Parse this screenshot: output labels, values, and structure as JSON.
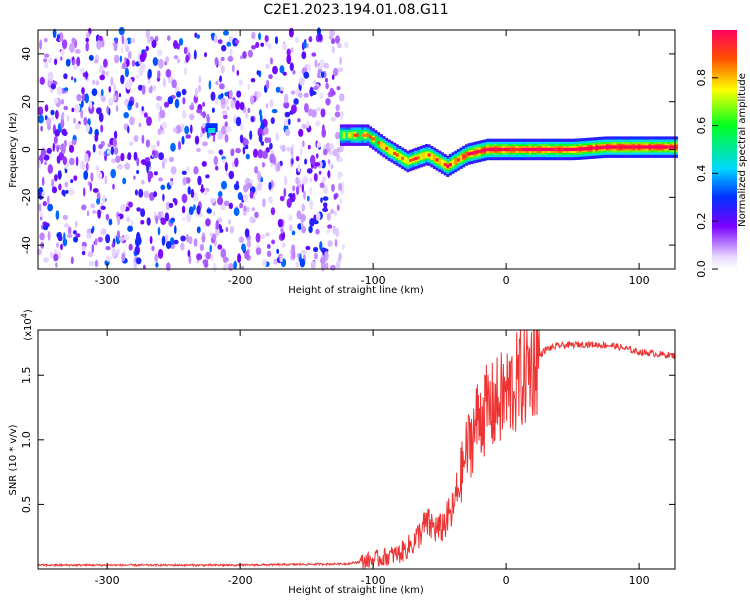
{
  "title": "C2E1.2023.194.01.08.G11",
  "chart_data": [
    {
      "type": "heatmap",
      "xlabel": "Height of straight line (km)",
      "ylabel": "Frequency (Hz)",
      "xlim": [
        -352,
        127
      ],
      "ylim": [
        -50,
        50
      ],
      "xticks": [
        -300,
        -200,
        -100,
        0,
        100
      ],
      "yticks": [
        -40,
        -20,
        0,
        20,
        40
      ],
      "colorbar": {
        "label": "Normalized spectral amplitude",
        "range": [
          0,
          1
        ],
        "ticks": [
          0.0,
          0.2,
          0.4,
          0.6,
          0.8
        ],
        "tick_labels": [
          "0.0",
          "0.2",
          "0.4",
          "0.6",
          "0.8"
        ]
      },
      "noise_region": {
        "x": [
          -352,
          -120
        ],
        "typical_amplitude": 0.25
      },
      "tone_track": [
        {
          "x": -125,
          "freq": 6,
          "amp": 0.55
        },
        {
          "x": -105,
          "freq": 6,
          "amp": 0.7
        },
        {
          "x": -90,
          "freq": 0,
          "amp": 0.75
        },
        {
          "x": -75,
          "freq": -5,
          "amp": 0.75
        },
        {
          "x": -60,
          "freq": -2,
          "amp": 0.8
        },
        {
          "x": -45,
          "freq": -7,
          "amp": 0.85
        },
        {
          "x": -30,
          "freq": -2,
          "amp": 0.9
        },
        {
          "x": -15,
          "freq": 0,
          "amp": 0.95
        },
        {
          "x": 0,
          "freq": 0,
          "amp": 0.9
        },
        {
          "x": 25,
          "freq": 0,
          "amp": 0.9
        },
        {
          "x": 50,
          "freq": 0,
          "amp": 0.9
        },
        {
          "x": 75,
          "freq": 1,
          "amp": 0.95
        },
        {
          "x": 100,
          "freq": 1,
          "amp": 0.95
        },
        {
          "x": 127,
          "freq": 1,
          "amp": 0.9
        }
      ]
    },
    {
      "type": "line",
      "xlabel": "Height of straight line (km)",
      "ylabel": "SNR (10 * v/v)",
      "exponent_label": "(x10",
      "exponent_power": "4",
      "exponent_close": ")",
      "xlim": [
        -352,
        127
      ],
      "ylim": [
        0,
        1.85
      ],
      "xticks": [
        -300,
        -200,
        -100,
        0,
        100
      ],
      "yticks": [
        0.5,
        1.0,
        1.5
      ],
      "ytick_labels": [
        "0.5",
        "1.0",
        "1.5"
      ],
      "color": "#ee3333",
      "series": [
        {
          "x": [
            -352,
            -200,
            -120,
            -100,
            -80,
            -70,
            -60,
            -50,
            -40,
            -30,
            -20,
            -10,
            0,
            10,
            20,
            30,
            40,
            60,
            80,
            100,
            127
          ],
          "y": [
            0.03,
            0.03,
            0.04,
            0.07,
            0.12,
            0.2,
            0.35,
            0.3,
            0.45,
            0.9,
            1.2,
            1.25,
            1.35,
            1.45,
            1.6,
            1.7,
            1.73,
            1.74,
            1.73,
            1.68,
            1.65
          ]
        }
      ]
    }
  ]
}
